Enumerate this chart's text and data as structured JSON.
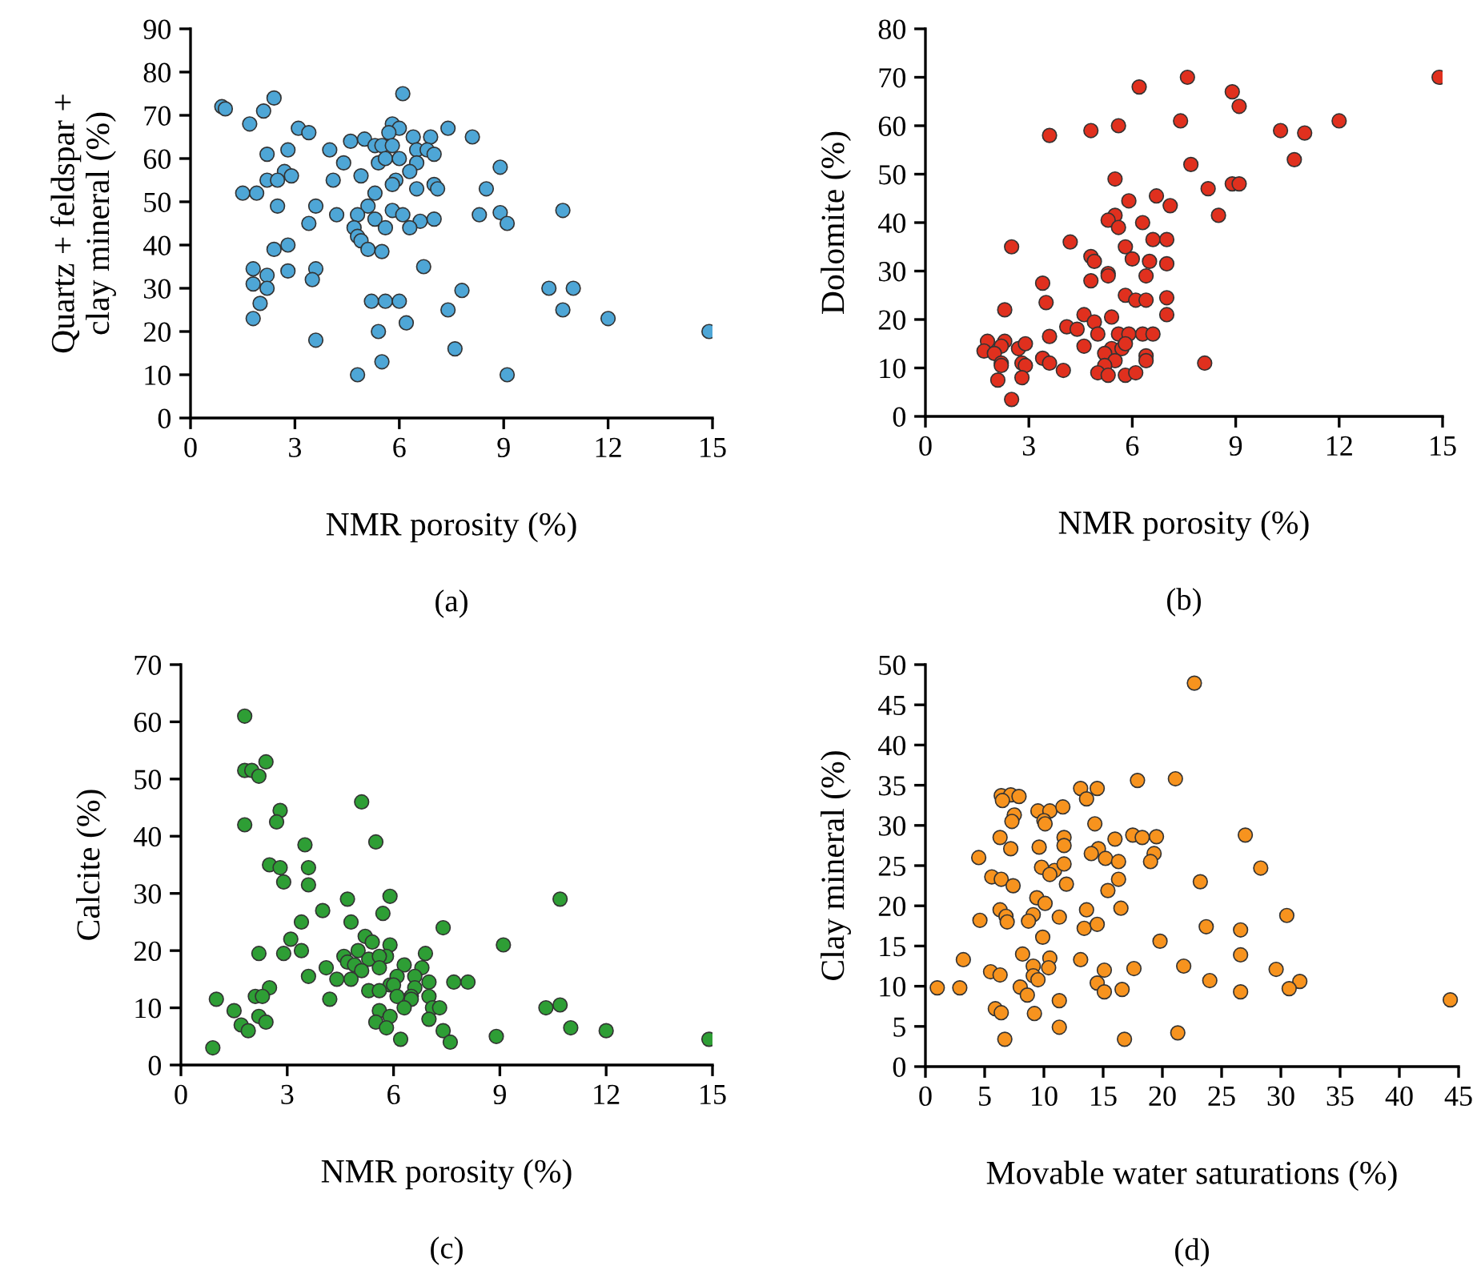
{
  "chart_data": [
    {
      "type": "scatter",
      "xlabel": "NMR porosity (%)",
      "ylabel": "Quartz + feldspar +\nclay mineral (%)",
      "annotations": [
        "(a)"
      ],
      "xlim": [
        0,
        15
      ],
      "ylim": [
        0,
        90
      ],
      "xticks": [
        0,
        3,
        6,
        9,
        12,
        15
      ],
      "yticks": [
        0,
        10,
        20,
        30,
        40,
        50,
        60,
        70,
        80,
        90
      ],
      "grid": false,
      "marker": "circle",
      "series": [
        {
          "color": "#4ea6d6",
          "x": [
            0.9,
            1.0,
            2.4,
            2.1,
            1.7,
            3.1,
            3.4,
            6.1,
            5.8,
            6.0,
            5.7,
            7.4,
            8.1,
            6.4,
            6.9,
            4.6,
            5.0,
            5.3,
            5.5,
            5.8,
            6.5,
            6.8,
            7.0,
            2.2,
            2.8,
            4.0,
            5.4,
            5.6,
            6.0,
            4.4,
            6.5,
            8.9,
            2.7,
            2.9,
            6.3,
            4.1,
            4.9,
            2.2,
            2.5,
            5.9,
            5.8,
            7.0,
            7.1,
            6.5,
            5.3,
            8.5,
            1.5,
            1.9,
            2.5,
            3.6,
            5.1,
            5.8,
            6.1,
            4.2,
            4.8,
            5.3,
            8.3,
            8.9,
            10.7,
            9.1,
            6.6,
            7.0,
            3.4,
            4.7,
            5.6,
            6.3,
            4.8,
            4.9,
            5.1,
            5.5,
            2.8,
            2.4,
            6.7,
            1.8,
            2.2,
            2.8,
            3.6,
            3.5,
            1.8,
            2.2,
            7.8,
            10.3,
            11.0,
            2.0,
            5.2,
            5.6,
            6.0,
            7.4,
            10.7,
            1.8,
            6.2,
            12.0,
            5.4,
            14.9,
            3.6,
            7.6,
            5.5,
            4.8,
            9.1
          ],
          "values": [
            72,
            71.5,
            74,
            71,
            68,
            67,
            66,
            75,
            68,
            67,
            66,
            67,
            65,
            65,
            65,
            64,
            64.5,
            63,
            63,
            63,
            62,
            62,
            61,
            61,
            62,
            62,
            59,
            60,
            60,
            59,
            59,
            58,
            57,
            56,
            57,
            55,
            56,
            55,
            55,
            55,
            54,
            54,
            53,
            53,
            52,
            53,
            52,
            52,
            49,
            49,
            49,
            48,
            47,
            47,
            47,
            46,
            47,
            47.5,
            48,
            45,
            45.5,
            46,
            45,
            44,
            44,
            44,
            42,
            41,
            39,
            38.5,
            40,
            39,
            35,
            34.5,
            33,
            34,
            34.5,
            32,
            31,
            30,
            29.5,
            30,
            30,
            26.5,
            27,
            27,
            27,
            25,
            25,
            23,
            22,
            23,
            20,
            20,
            18,
            16,
            13,
            10,
            10
          ]
        }
      ]
    },
    {
      "type": "scatter",
      "xlabel": "NMR porosity (%)",
      "ylabel": "Dolomite (%)",
      "annotations": [
        "(b)"
      ],
      "xlim": [
        0,
        15
      ],
      "ylim": [
        0,
        80
      ],
      "xticks": [
        0,
        3,
        6,
        9,
        12,
        15
      ],
      "yticks": [
        0,
        10,
        20,
        30,
        40,
        50,
        60,
        70,
        80
      ],
      "grid": false,
      "marker": "circle",
      "series": [
        {
          "color": "#e0301e",
          "x": [
            14.9,
            7.6,
            6.2,
            8.9,
            9.1,
            7.4,
            12.0,
            10.3,
            11.0,
            3.6,
            4.8,
            5.6,
            10.7,
            7.7,
            5.5,
            8.2,
            8.9,
            9.1,
            5.9,
            6.7,
            7.1,
            8.5,
            5.5,
            5.3,
            5.6,
            6.3,
            6.6,
            7.0,
            4.2,
            2.5,
            5.8,
            4.8,
            4.9,
            6.0,
            6.5,
            7.0,
            5.3,
            5.3,
            6.4,
            3.4,
            4.8,
            3.5,
            5.8,
            6.1,
            6.4,
            7.0,
            2.3,
            7.0,
            4.6,
            4.9,
            5.4,
            4.1,
            4.4,
            3.6,
            5.0,
            5.6,
            5.9,
            6.3,
            6.6,
            1.8,
            2.3,
            2.2,
            1.7,
            2.0,
            2.7,
            2.9,
            4.6,
            5.4,
            5.7,
            5.8,
            5.2,
            2.2,
            2.2,
            2.8,
            2.9,
            3.4,
            3.6,
            5.5,
            5.2,
            6.4,
            6.4,
            8.1,
            4.0,
            5.0,
            5.3,
            5.8,
            6.1,
            2.8,
            2.1,
            2.5
          ],
          "values": [
            70,
            70,
            68,
            67,
            64,
            61,
            61,
            59,
            58.5,
            58,
            59,
            60,
            53,
            52,
            49,
            47,
            48,
            48,
            44.5,
            45.5,
            43.5,
            41.5,
            41.5,
            40.5,
            39,
            40,
            36.5,
            36.5,
            36,
            35,
            35,
            33,
            32,
            32.5,
            32,
            31.5,
            29.5,
            29,
            29,
            27.5,
            28,
            23.5,
            25,
            24,
            24,
            24.5,
            22,
            21,
            21,
            19.5,
            20.5,
            18.5,
            18,
            16.5,
            17,
            17,
            17,
            17,
            17,
            15.5,
            15.5,
            14.5,
            13.5,
            13,
            14,
            15,
            14.5,
            14,
            14,
            15,
            13,
            11,
            10.5,
            11,
            10.5,
            12,
            11,
            11.5,
            10.5,
            12.5,
            11.5,
            11,
            9.5,
            9,
            8.5,
            8.5,
            9,
            8,
            7.5,
            3.5
          ]
        }
      ]
    },
    {
      "type": "scatter",
      "xlabel": "NMR porosity (%)",
      "ylabel": "Calcite (%)",
      "annotations": [
        "(c)"
      ],
      "xlim": [
        0,
        15
      ],
      "ylim": [
        0,
        70
      ],
      "xticks": [
        0,
        3,
        6,
        9,
        12,
        15
      ],
      "yticks": [
        0,
        10,
        20,
        30,
        40,
        50,
        60,
        70
      ],
      "grid": false,
      "marker": "circle",
      "series": [
        {
          "color": "#2e9e35",
          "x": [
            1.8,
            1.8,
            2.0,
            2.2,
            2.4,
            1.8,
            2.8,
            2.7,
            5.1,
            5.5,
            3.5,
            2.5,
            2.8,
            3.6,
            3.6,
            2.9,
            5.9,
            10.7,
            4.7,
            4.0,
            5.7,
            4.8,
            3.4,
            7.4,
            3.1,
            5.2,
            5.4,
            5.9,
            9.1,
            2.2,
            2.9,
            3.4,
            5.0,
            6.9,
            4.6,
            4.7,
            4.9,
            5.3,
            5.8,
            5.6,
            6.3,
            6.8,
            5.1,
            5.6,
            4.1,
            3.6,
            4.4,
            4.8,
            6.1,
            6.6,
            7.0,
            7.7,
            8.1,
            5.9,
            6.0,
            2.5,
            5.3,
            5.6,
            6.6,
            2.1,
            2.3,
            4.2,
            6.1,
            6.5,
            6.5,
            7.0,
            1.0,
            5.6,
            6.3,
            7.1,
            7.3,
            10.3,
            10.7,
            1.5,
            2.2,
            5.5,
            5.9,
            7.0,
            1.7,
            2.4,
            1.9,
            5.8,
            7.4,
            11.0,
            12.0,
            6.2,
            7.6,
            8.9,
            14.9,
            0.9
          ],
          "values": [
            61,
            51.5,
            51.5,
            50.5,
            53,
            42,
            44.5,
            42.5,
            46,
            39,
            38.5,
            35,
            34.5,
            34.5,
            31.5,
            32,
            29.5,
            29,
            29,
            27,
            26.5,
            25,
            25,
            24,
            22,
            22.5,
            21.5,
            21,
            21,
            19.5,
            19.5,
            20,
            20,
            19.5,
            19,
            18,
            17.5,
            18.5,
            19,
            19,
            17.5,
            17,
            16.5,
            17,
            17,
            15.5,
            15,
            15,
            15.5,
            15.5,
            14.5,
            14.5,
            14.5,
            14,
            14,
            13.5,
            13,
            13,
            13.5,
            12,
            12,
            11.5,
            12,
            12,
            11.5,
            12,
            11.5,
            9.5,
            10,
            10,
            10,
            10,
            10.5,
            9.5,
            8.5,
            7.5,
            8.5,
            8,
            7,
            7.5,
            6,
            6.5,
            6,
            6.5,
            6,
            4.5,
            4,
            5,
            4.5,
            3
          ]
        }
      ]
    },
    {
      "type": "scatter",
      "xlabel": "Movable water saturations (%)",
      "ylabel": "Clay mineral (%)",
      "annotations": [
        "(d)"
      ],
      "xlim": [
        0,
        45
      ],
      "ylim": [
        0,
        50
      ],
      "xticks": [
        0,
        5,
        10,
        15,
        20,
        25,
        30,
        35,
        40,
        45
      ],
      "yticks": [
        0,
        5,
        10,
        15,
        20,
        25,
        30,
        35,
        40,
        45,
        50
      ],
      "grid": false,
      "marker": "circle",
      "series": [
        {
          "color": "#f7931e",
          "x": [
            22.7,
            17.9,
            21.1,
            13.1,
            14.5,
            13.6,
            6.4,
            7.2,
            7.9,
            6.5,
            7.5,
            7.3,
            9.5,
            10.5,
            11.6,
            10.0,
            10.1,
            14.3,
            27.0,
            17.5,
            18.3,
            19.5,
            6.3,
            11.7,
            11.7,
            16.0,
            7.2,
            9.6,
            14.6,
            14.0,
            15.2,
            19.3,
            19.0,
            16.3,
            4.5,
            28.3,
            9.8,
            10.9,
            10.5,
            11.7,
            5.6,
            6.4,
            7.4,
            11.9,
            16.3,
            23.2,
            15.4,
            9.4,
            10.1,
            6.3,
            9.1,
            6.8,
            6.9,
            8.7,
            11.3,
            13.6,
            16.5,
            30.5,
            4.6,
            13.4,
            14.5,
            23.7,
            26.6,
            9.9,
            19.8,
            8.2,
            10.5,
            26.6,
            13.1,
            3.2,
            5.5,
            6.3,
            9.1,
            10.4,
            15.1,
            17.6,
            21.8,
            29.6,
            9.1,
            9.5,
            14.5,
            24.0,
            31.6,
            1.0,
            2.9,
            8.0,
            8.6,
            15.1,
            16.6,
            26.6,
            30.7,
            11.3,
            44.3,
            5.9,
            6.4,
            9.2,
            11.3,
            6.7,
            16.8,
            21.3
          ],
          "values": [
            47.7,
            35.6,
            35.8,
            34.6,
            34.6,
            33.3,
            33.7,
            33.8,
            33.6,
            33.1,
            31.3,
            30.5,
            31.8,
            31.8,
            32.3,
            30.6,
            30.2,
            30.2,
            28.8,
            28.8,
            28.5,
            28.6,
            28.5,
            28.5,
            27.5,
            28.3,
            27.1,
            27.3,
            27.1,
            26.5,
            25.9,
            26.5,
            25.5,
            25.5,
            26,
            24.7,
            24.8,
            24.4,
            23.9,
            25.2,
            23.6,
            23.3,
            22.5,
            22.7,
            23.3,
            23,
            21.9,
            21,
            20.3,
            19.5,
            18.9,
            18.7,
            18,
            18.1,
            18.6,
            19.5,
            19.7,
            18.8,
            18.2,
            17.2,
            17.7,
            17.4,
            17,
            16.1,
            15.6,
            14,
            13.5,
            13.9,
            13.3,
            13.3,
            11.8,
            11.4,
            12.5,
            12.3,
            12,
            12.2,
            12.5,
            12.1,
            11.3,
            10.8,
            10.4,
            10.7,
            10.6,
            9.8,
            9.8,
            9.9,
            8.9,
            9.3,
            9.6,
            9.3,
            9.7,
            8.2,
            8.3,
            7.2,
            6.7,
            6.6,
            4.9,
            3.4,
            3.4,
            4.2
          ]
        }
      ]
    }
  ]
}
